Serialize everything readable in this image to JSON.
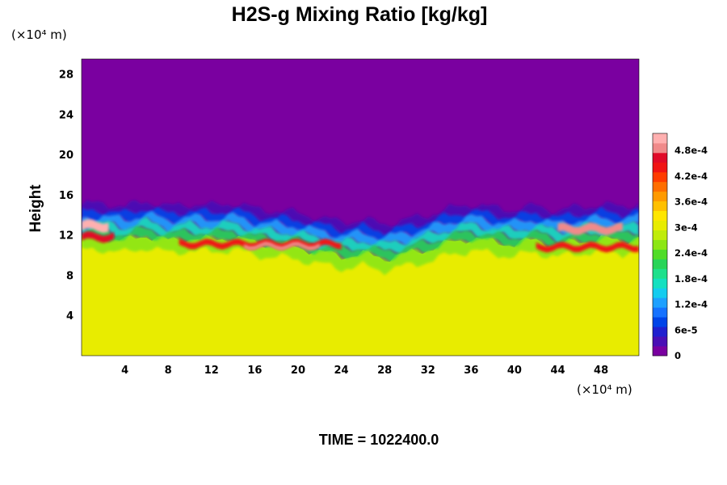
{
  "chart_data": {
    "type": "heatmap",
    "title": "H2S-g Mixing Ratio [kg/kg]",
    "ylabel": "Height",
    "x_unit_label": "(×10⁴ m)",
    "y_unit_label": "(×10⁴ m)",
    "xlim": [
      0,
      51.5
    ],
    "ylim": [
      0,
      29.5
    ],
    "x_ticks": [
      4,
      8,
      12,
      16,
      20,
      24,
      28,
      32,
      36,
      40,
      44,
      48
    ],
    "y_ticks": [
      4,
      8,
      12,
      16,
      20,
      24,
      28
    ],
    "x_tick_labels": [
      "4",
      "8",
      "12",
      "16",
      "20",
      "24",
      "28",
      "32",
      "36",
      "40",
      "44",
      "48"
    ],
    "y_tick_labels": [
      "4",
      "8",
      "12",
      "16",
      "20",
      "24",
      "28"
    ],
    "colorbar": {
      "min": 0,
      "max": 0.00052,
      "labels": [
        "0",
        "6e-5",
        "1.2e-4",
        "1.8e-4",
        "2.4e-4",
        "3e-4",
        "3.6e-4",
        "4.2e-4",
        "4.8e-4"
      ],
      "label_values": [
        0,
        6e-05,
        0.00012,
        0.00018,
        0.00024,
        0.0003,
        0.00036,
        0.00042,
        0.00048
      ],
      "colors": [
        "#7a00a0",
        "#4a0fb5",
        "#2020cf",
        "#0044e8",
        "#1672ff",
        "#1ea0ff",
        "#14ccef",
        "#14e0c0",
        "#1ee08c",
        "#28d458",
        "#50dc28",
        "#8ce614",
        "#c0ec0a",
        "#e8ec00",
        "#ffe600",
        "#ffc000",
        "#ff9a00",
        "#ff6e00",
        "#ff3c00",
        "#f01414",
        "#e00a28",
        "#f08a8a",
        "#ffb0b0"
      ]
    },
    "field_summary": {
      "lower_layer_value": 0.00034,
      "upper_layer_value": 0,
      "transition_height_range": [
        10.5,
        15
      ],
      "interface_heights_x": [
        0,
        2,
        4,
        6,
        8,
        10,
        12,
        14,
        16,
        18,
        20,
        22,
        24,
        26,
        28,
        30,
        32,
        34,
        36,
        38,
        40,
        42,
        44,
        46,
        48,
        50,
        51.5
      ],
      "interface_heights_y": [
        14.8,
        15.0,
        14.6,
        15.2,
        14.6,
        14.9,
        14.7,
        15.0,
        14.4,
        14.2,
        14.0,
        13.5,
        13.1,
        13.3,
        12.9,
        13.3,
        13.8,
        14.4,
        14.9,
        14.5,
        14.3,
        14.7,
        14.2,
        14.6,
        14.8,
        14.6,
        15.0
      ]
    },
    "footer": "TIME = 1022400.0"
  }
}
